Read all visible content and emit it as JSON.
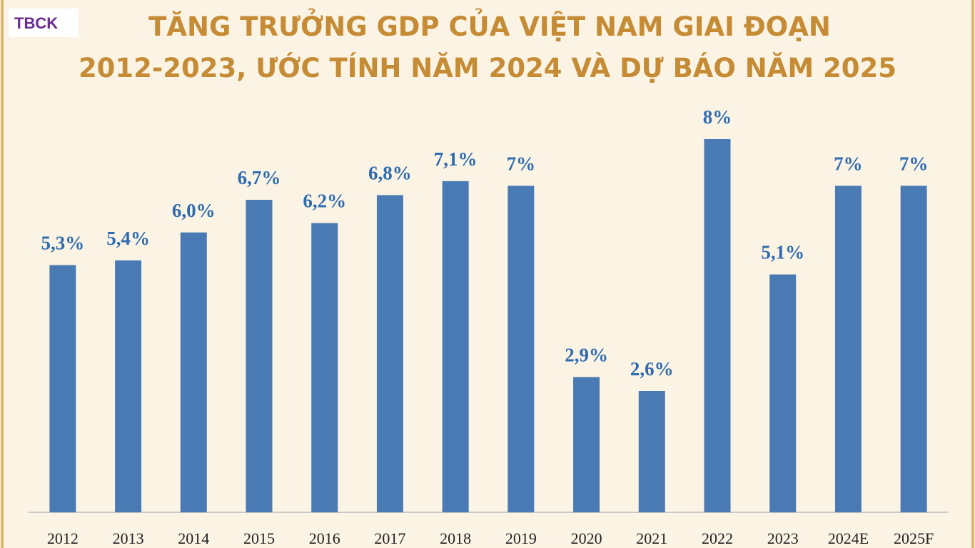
{
  "chart_data": {
    "type": "bar",
    "title": [
      "TĂNG TRƯỞNG GDP CỦA VIỆT NAM GIAI ĐOẠN",
      "2012-2023, ƯỚC TÍNH NĂM 2024 VÀ DỰ BÁO NĂM 2025"
    ],
    "logo": "TBCK",
    "categories": [
      "2012",
      "2013",
      "2014",
      "2015",
      "2016",
      "2017",
      "2018",
      "2019",
      "2020",
      "2021",
      "2022",
      "2023",
      "2024E",
      "2025F"
    ],
    "values": [
      5.3,
      5.4,
      6.0,
      6.7,
      6.2,
      6.8,
      7.1,
      7,
      2.9,
      2.6,
      8,
      5.1,
      7,
      7
    ],
    "value_labels": [
      "5,3%",
      "5,4%",
      "6,0%",
      "6,7%",
      "6,2%",
      "6,8%",
      "7,1%",
      "7%",
      "2,9%",
      "2,6%",
      "8%",
      "5,1%",
      "7%",
      "7%"
    ],
    "color": "#4a7ab4"
  }
}
